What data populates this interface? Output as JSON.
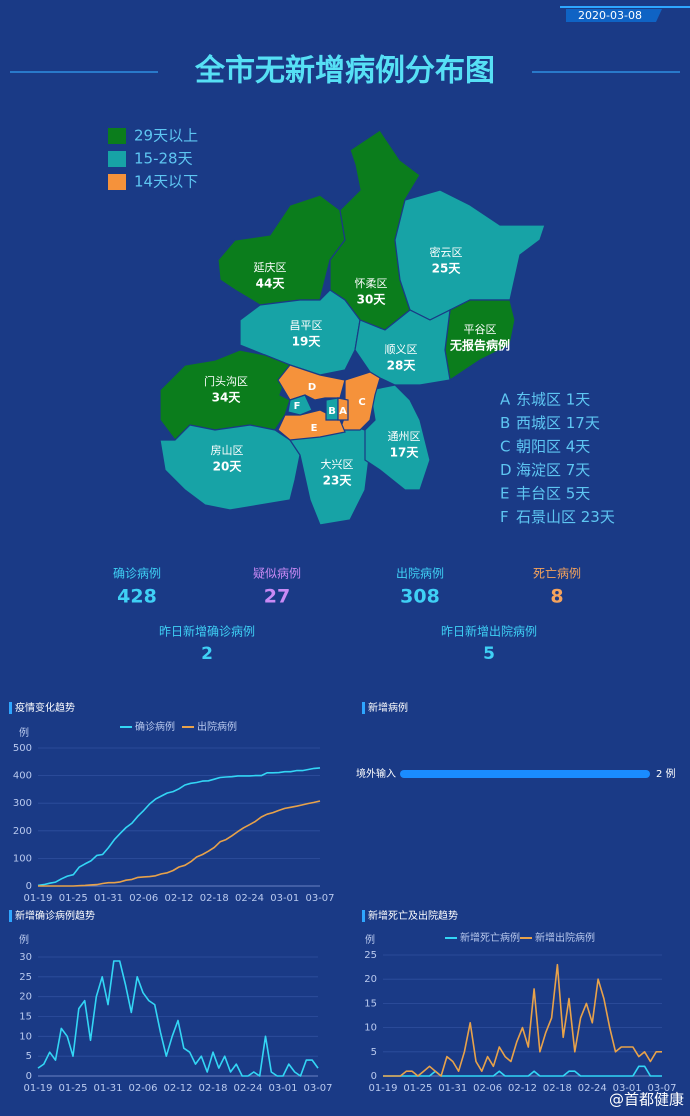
{
  "date": "2020-03-08",
  "title": "全市无新增病例分布图",
  "legend": [
    {
      "label": "29天以上",
      "color": "#0b7d1c"
    },
    {
      "label": "15-28天",
      "color": "#17a3a6"
    },
    {
      "label": "14天以下",
      "color": "#f5923b"
    }
  ],
  "districts": [
    {
      "name": "延庆区",
      "days": "44天"
    },
    {
      "name": "怀柔区",
      "days": "30天"
    },
    {
      "name": "密云区",
      "days": "25天"
    },
    {
      "name": "平谷区",
      "days": "无报告病例"
    },
    {
      "name": "昌平区",
      "days": "19天"
    },
    {
      "name": "顺义区",
      "days": "28天"
    },
    {
      "name": "门头沟区",
      "days": "34天"
    },
    {
      "name": "房山区",
      "days": "20天"
    },
    {
      "name": "大兴区",
      "days": "23天"
    },
    {
      "name": "通州区",
      "days": "17天"
    }
  ],
  "city_list": [
    {
      "letter": "A",
      "text": "东城区 1天"
    },
    {
      "letter": "B",
      "text": "西城区 17天"
    },
    {
      "letter": "C",
      "text": "朝阳区 4天"
    },
    {
      "letter": "D",
      "text": "海淀区 7天"
    },
    {
      "letter": "E",
      "text": "丰台区 5天"
    },
    {
      "letter": "F",
      "text": "石景山区 23天"
    }
  ],
  "stats": [
    {
      "label": "确诊病例",
      "value": 428,
      "color": "#3fd0f5"
    },
    {
      "label": "疑似病例",
      "value": 27,
      "color": "#c98af5"
    },
    {
      "label": "出院病例",
      "value": 308,
      "color": "#3fd0f5"
    },
    {
      "label": "死亡病例",
      "value": 8,
      "color": "#f5a35c"
    }
  ],
  "yesterday": [
    {
      "label": "昨日新增确诊病例",
      "value": 2
    },
    {
      "label": "昨日新增出院病例",
      "value": 5
    }
  ],
  "chart_data": [
    {
      "type": "line",
      "title": "疫情变化趋势",
      "y_label": "例",
      "grid": true,
      "x": [
        "01-19",
        null,
        null,
        null,
        null,
        null,
        "01-25",
        null,
        null,
        null,
        null,
        null,
        "01-31",
        null,
        null,
        null,
        null,
        null,
        "02-06",
        null,
        null,
        null,
        null,
        null,
        "02-12",
        null,
        null,
        null,
        null,
        null,
        "02-18",
        null,
        null,
        null,
        null,
        null,
        "02-24",
        null,
        null,
        null,
        null,
        null,
        "03-01",
        null,
        null,
        null,
        null,
        null,
        "03-07"
      ],
      "ylim": [
        0,
        500
      ],
      "yticks": [
        0,
        100,
        200,
        300,
        400,
        500
      ],
      "series": [
        {
          "name": "确诊病例",
          "color": "#33d6f5",
          "values": [
            2,
            5,
            10,
            14,
            26,
            36,
            41,
            68,
            80,
            91,
            111,
            114,
            139,
            168,
            191,
            212,
            228,
            253,
            274,
            297,
            315,
            326,
            337,
            342,
            352,
            366,
            372,
            375,
            380,
            381,
            387,
            393,
            395,
            396,
            399,
            399,
            399,
            400,
            400,
            410,
            410,
            411,
            414,
            414,
            418,
            418,
            422,
            426,
            428
          ]
        },
        {
          "name": "出院病例",
          "color": "#e8a24a",
          "values": [
            0,
            0,
            0,
            0,
            0,
            0,
            0,
            1,
            2,
            4,
            5,
            9,
            12,
            12,
            15,
            21,
            24,
            31,
            33,
            34,
            37,
            44,
            48,
            56,
            69,
            75,
            88,
            105,
            114,
            126,
            140,
            160,
            168,
            182,
            197,
            211,
            222,
            234,
            250,
            260,
            266,
            274,
            281,
            285,
            289,
            294,
            299,
            303,
            308
          ]
        }
      ]
    },
    {
      "type": "bar",
      "title": "新增病例",
      "categories": [
        "境外输入"
      ],
      "values": [
        2
      ],
      "value_labels": [
        "2 例"
      ],
      "color": "#1a8cff"
    },
    {
      "type": "line",
      "title": "新增确诊病例趋势",
      "y_label": "例",
      "grid": true,
      "color": "#33d6f5",
      "x": [
        "01-19",
        null,
        null,
        null,
        null,
        null,
        "01-25",
        null,
        null,
        null,
        null,
        null,
        "01-31",
        null,
        null,
        null,
        null,
        null,
        "02-06",
        null,
        null,
        null,
        null,
        null,
        "02-12",
        null,
        null,
        null,
        null,
        null,
        "02-18",
        null,
        null,
        null,
        null,
        null,
        "02-24",
        null,
        null,
        null,
        null,
        null,
        "03-01",
        null,
        null,
        null,
        null,
        null,
        "03-07"
      ],
      "ylim": [
        0,
        30
      ],
      "yticks": [
        0,
        5,
        10,
        15,
        20,
        25,
        30
      ],
      "values": [
        2,
        3,
        6,
        4,
        12,
        10,
        5,
        17,
        19,
        9,
        20,
        25,
        18,
        29,
        29,
        23,
        16,
        25,
        21,
        19,
        18,
        11,
        5,
        10,
        14,
        7,
        6,
        3,
        5,
        1,
        6,
        2,
        5,
        1,
        3,
        0,
        0,
        1,
        0,
        10,
        1,
        0,
        0,
        3,
        1,
        0,
        4,
        4,
        2
      ]
    },
    {
      "type": "line",
      "title": "新增死亡及出院趋势",
      "y_label": "例",
      "grid": true,
      "x": [
        "01-19",
        null,
        null,
        null,
        null,
        null,
        "01-25",
        null,
        null,
        null,
        null,
        null,
        "01-31",
        null,
        null,
        null,
        null,
        null,
        "02-06",
        null,
        null,
        null,
        null,
        null,
        "02-12",
        null,
        null,
        null,
        null,
        null,
        "02-18",
        null,
        null,
        null,
        null,
        null,
        "02-24",
        null,
        null,
        null,
        null,
        null,
        "03-01",
        null,
        null,
        null,
        null,
        null,
        "03-07"
      ],
      "ylim": [
        0,
        25
      ],
      "yticks": [
        0,
        5,
        10,
        15,
        20,
        25
      ],
      "series": [
        {
          "name": "新增死亡病例",
          "color": "#33d6f5",
          "values": [
            0,
            0,
            0,
            0,
            0,
            0,
            0,
            0,
            0,
            1,
            0,
            0,
            0,
            0,
            0,
            0,
            0,
            0,
            0,
            0,
            1,
            0,
            0,
            0,
            0,
            0,
            1,
            0,
            0,
            0,
            0,
            0,
            1,
            1,
            0,
            0,
            0,
            0,
            0,
            0,
            0,
            0,
            0,
            0,
            2,
            2,
            0,
            0,
            0
          ]
        },
        {
          "name": "新增出院病例",
          "color": "#e8a24a",
          "values": [
            0,
            0,
            0,
            0,
            1,
            1,
            0,
            1,
            2,
            1,
            0,
            4,
            3,
            1,
            5,
            11,
            3,
            1,
            4,
            2,
            6,
            4,
            3,
            7,
            10,
            6,
            18,
            5,
            9,
            12,
            23,
            8,
            16,
            5,
            12,
            15,
            11,
            20,
            16,
            10,
            5,
            6,
            6,
            6,
            4,
            5,
            3,
            5,
            5
          ]
        }
      ]
    }
  ],
  "watermark": "@首都健康"
}
